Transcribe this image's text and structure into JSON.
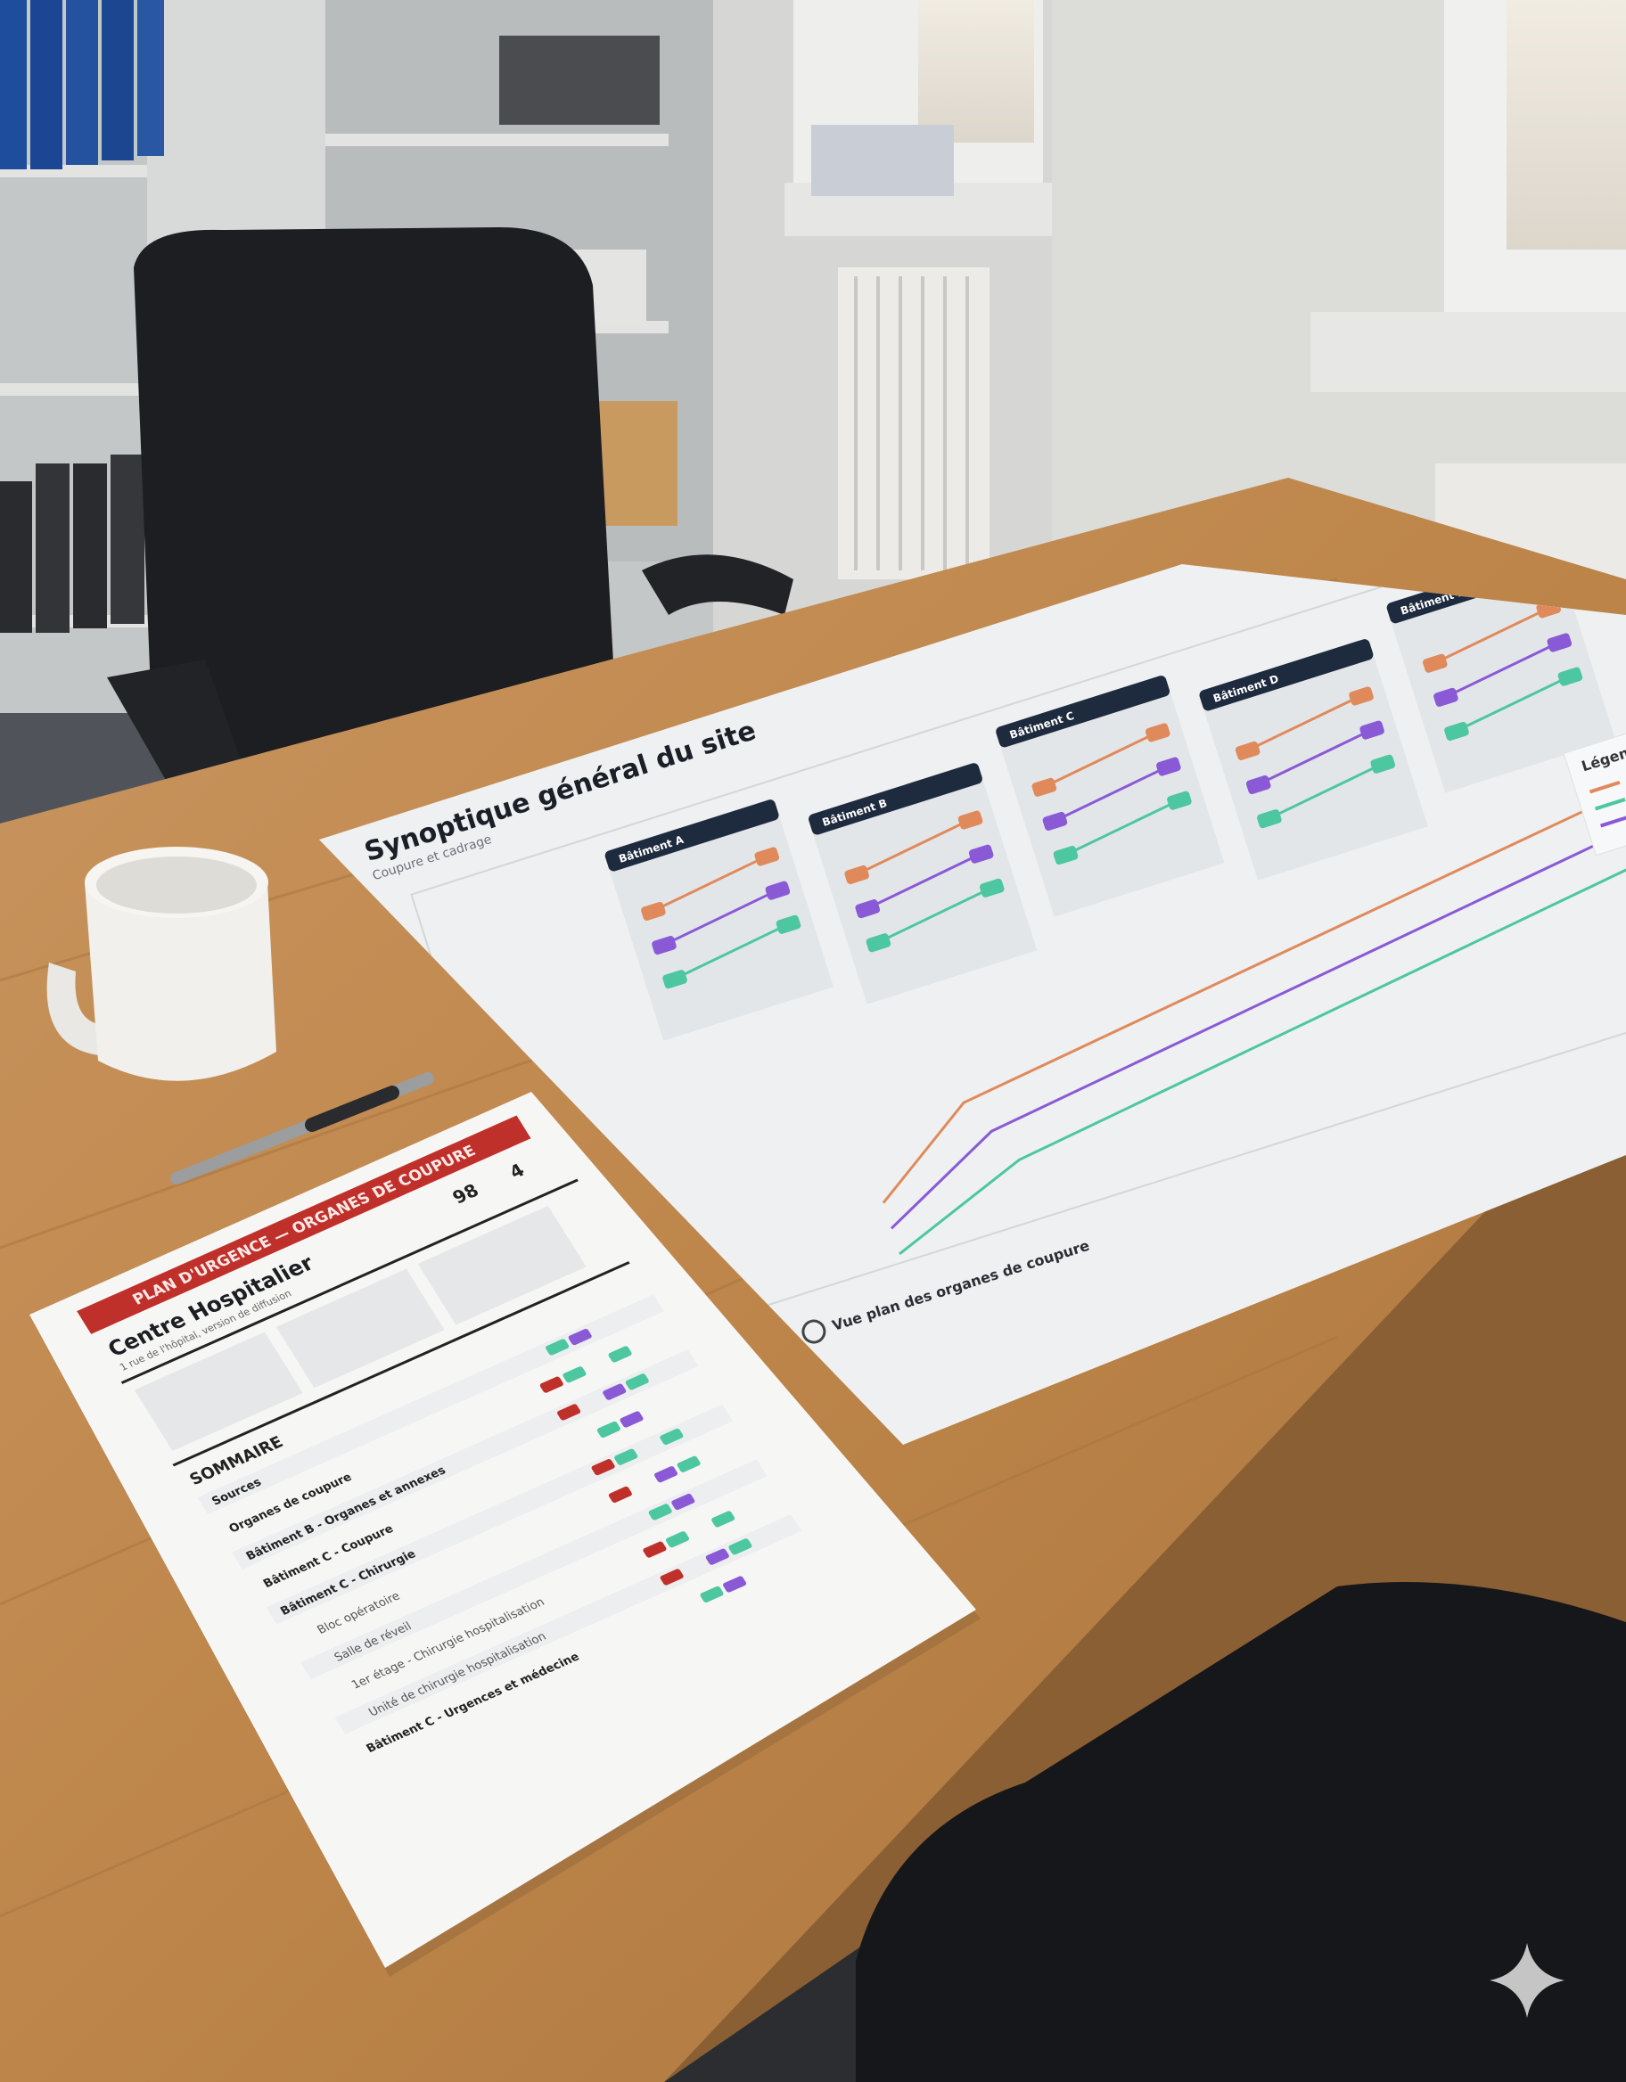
{
  "scene": {
    "colors": {
      "wall": "#d8d9d6",
      "desk": "#c18a50",
      "chair": "#1d1e21",
      "accent_red": "#c0302b",
      "navy": "#1e2a3e",
      "line_orange": "#e08a5c",
      "line_purple": "#8a5ad6",
      "line_green": "#4cc79f"
    }
  },
  "poster": {
    "title": "Synoptique général du site",
    "subtitle": "Coupure et cadrage",
    "legend_title": "Légende",
    "footer_title": "Vue plan des organes de coupure",
    "group_labels": [
      "Bâtiment A",
      "Bâtiment B",
      "Bâtiment C",
      "Bâtiment D",
      "Bâtiment E"
    ]
  },
  "document": {
    "banner": "PLAN D'URGENCE — ORGANES DE COUPURE",
    "title": "Centre Hospitalier",
    "subtitle": "1 rue de l'hôpital, version de diffusion",
    "stat_1_value": "98",
    "stat_2_value": "4",
    "summary_heading": "SOMMAIRE",
    "summary_items": [
      "Sources",
      "Organes de coupure",
      "Bâtiment B - Organes et annexes",
      "Bâtiment C - Coupure",
      "Bâtiment C - Chirurgie",
      "Bloc opératoire",
      "Salle de réveil",
      "1er étage - Chirurgie hospitalisation",
      "Unité de chirurgie hospitalisation",
      "Bâtiment C - Urgences et médecine"
    ]
  }
}
